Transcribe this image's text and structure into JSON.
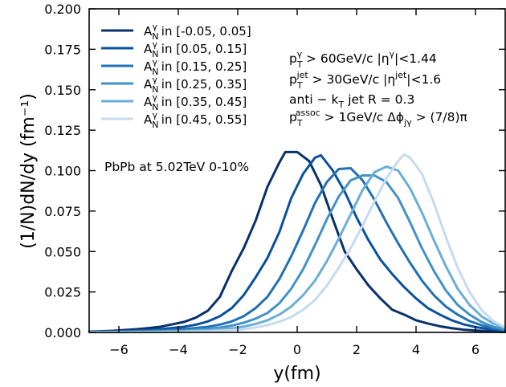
{
  "chart_data": {
    "type": "line",
    "xlabel": "y(fm)",
    "ylabel": "(1/N)dN/dy (fm⁻¹)",
    "xlim": [
      -7,
      7
    ],
    "ylim": [
      0,
      0.2
    ],
    "xticks": [
      -6,
      -4,
      -2,
      0,
      2,
      4,
      6
    ],
    "xtick_labels": [
      "−6",
      "−4",
      "−2",
      "0",
      "2",
      "4",
      "6"
    ],
    "yticks": [
      0,
      0.025,
      0.05,
      0.075,
      0.1,
      0.125,
      0.15,
      0.175,
      0.2
    ],
    "ytick_labels": [
      "0.000",
      "0.025",
      "0.050",
      "0.075",
      "0.100",
      "0.125",
      "0.150",
      "0.175",
      "0.200"
    ],
    "grid": false,
    "legend_position": "top-left",
    "legend_prefix": "A",
    "legend_sub": "N",
    "legend_sup": "γ",
    "series": [
      {
        "name": "[-0.05, 0.05]",
        "color": "#08306b",
        "x": [
          -7,
          -6.6,
          -6.2,
          -5.8,
          -5.4,
          -5,
          -4.6,
          -4.2,
          -3.8,
          -3.4,
          -3,
          -2.6,
          -2.2,
          -1.8,
          -1.4,
          -1,
          -0.6,
          -0.4,
          0,
          0.4,
          0.8,
          1.2,
          1.6,
          2,
          2.4,
          2.8,
          3.2,
          3.6,
          4,
          4.4,
          4.8,
          5.2,
          5.6,
          6,
          6.4,
          6.8,
          7
        ],
        "y": [
          0.0005,
          0.0007,
          0.001,
          0.0015,
          0.002,
          0.0027,
          0.0035,
          0.005,
          0.0065,
          0.0092,
          0.0135,
          0.022,
          0.038,
          0.052,
          0.069,
          0.09,
          0.105,
          0.1115,
          0.1115,
          0.106,
          0.091,
          0.07,
          0.05,
          0.039,
          0.029,
          0.021,
          0.014,
          0.011,
          0.0075,
          0.0055,
          0.0038,
          0.0026,
          0.0017,
          0.0012,
          0.0008,
          0.0005,
          0.0003
        ]
      },
      {
        "name": "[0.05, 0.15]",
        "color": "#08519c",
        "x": [
          -7,
          -6.2,
          -5.4,
          -4.6,
          -3.8,
          -3.4,
          -3,
          -2.6,
          -2.2,
          -1.8,
          -1.4,
          -1,
          -0.6,
          -0.2,
          0.2,
          0.6,
          0.8,
          1.2,
          1.6,
          2,
          2.4,
          2.8,
          3.2,
          3.6,
          4,
          4.4,
          4.8,
          5.2,
          5.6,
          6,
          6.4,
          6.8,
          7
        ],
        "y": [
          0.0003,
          0.0006,
          0.0011,
          0.002,
          0.0035,
          0.0048,
          0.0068,
          0.01,
          0.015,
          0.023,
          0.034,
          0.046,
          0.062,
          0.083,
          0.098,
          0.108,
          0.1095,
          0.1,
          0.087,
          0.071,
          0.057,
          0.045,
          0.036,
          0.028,
          0.021,
          0.015,
          0.011,
          0.0075,
          0.005,
          0.0033,
          0.0022,
          0.0014,
          0.0009
        ]
      },
      {
        "name": "[0.15, 0.25]",
        "color": "#2171b5",
        "x": [
          -7,
          -6.2,
          -5.4,
          -4.6,
          -3.8,
          -3,
          -2.6,
          -2.2,
          -1.8,
          -1.4,
          -1,
          -0.6,
          -0.2,
          0.2,
          0.6,
          1,
          1.4,
          1.8,
          2.2,
          2.6,
          3,
          3.4,
          3.8,
          4.2,
          4.6,
          5,
          5.4,
          5.8,
          6.2,
          6.6,
          7
        ],
        "y": [
          0.0002,
          0.0004,
          0.0007,
          0.0012,
          0.002,
          0.0035,
          0.0048,
          0.0068,
          0.01,
          0.015,
          0.022,
          0.033,
          0.047,
          0.063,
          0.08,
          0.093,
          0.101,
          0.1015,
          0.094,
          0.082,
          0.068,
          0.055,
          0.043,
          0.032,
          0.023,
          0.016,
          0.011,
          0.007,
          0.0045,
          0.0025,
          0.0012
        ]
      },
      {
        "name": "[0.25, 0.35]",
        "color": "#4292c6",
        "x": [
          -7,
          -6.2,
          -5.4,
          -4.6,
          -3.8,
          -3,
          -2.6,
          -2.2,
          -1.8,
          -1.4,
          -1,
          -0.6,
          -0.2,
          0.2,
          0.6,
          1,
          1.4,
          1.8,
          2.2,
          2.6,
          3,
          3.4,
          3.8,
          4.2,
          4.6,
          5,
          5.4,
          5.8,
          6.2,
          6.6,
          7
        ],
        "y": [
          0.0001,
          0.0002,
          0.0004,
          0.0007,
          0.0012,
          0.0022,
          0.003,
          0.0042,
          0.006,
          0.0085,
          0.012,
          0.018,
          0.027,
          0.039,
          0.054,
          0.07,
          0.084,
          0.094,
          0.097,
          0.097,
          0.093,
          0.083,
          0.068,
          0.052,
          0.038,
          0.026,
          0.017,
          0.011,
          0.0065,
          0.0035,
          0.0015
        ]
      },
      {
        "name": "[0.35, 0.45]",
        "color": "#6baed6",
        "x": [
          -7,
          -6.2,
          -5.4,
          -4.6,
          -3.8,
          -3,
          -2.2,
          -1.8,
          -1.4,
          -1,
          -0.6,
          -0.2,
          0.2,
          0.6,
          1,
          1.4,
          1.8,
          2.2,
          2.6,
          3,
          3.4,
          3.8,
          4.2,
          4.6,
          5,
          5.4,
          5.8,
          6.2,
          6.6,
          7
        ],
        "y": [
          0.0001,
          0.0001,
          0.0002,
          0.0004,
          0.0007,
          0.0013,
          0.0025,
          0.0036,
          0.0052,
          0.0075,
          0.011,
          0.016,
          0.023,
          0.032,
          0.044,
          0.058,
          0.073,
          0.088,
          0.099,
          0.1025,
          0.1,
          0.089,
          0.074,
          0.057,
          0.041,
          0.027,
          0.017,
          0.01,
          0.0055,
          0.0025
        ]
      },
      {
        "name": "[0.45, 0.55]",
        "color": "#c6dbef",
        "x": [
          -7,
          -6.2,
          -5.4,
          -4.6,
          -3.8,
          -3,
          -2.2,
          -1.8,
          -1.4,
          -1,
          -0.6,
          -0.2,
          0.2,
          0.6,
          1,
          1.4,
          1.8,
          2.2,
          2.6,
          3,
          3.4,
          3.6,
          3.8,
          4.2,
          4.6,
          5,
          5.4,
          5.8,
          6.2,
          6.6,
          7
        ],
        "y": [
          0,
          0.0001,
          0.0001,
          0.0002,
          0.0004,
          0.0007,
          0.0014,
          0.002,
          0.003,
          0.0045,
          0.0066,
          0.0095,
          0.014,
          0.02,
          0.029,
          0.04,
          0.052,
          0.066,
          0.081,
          0.095,
          0.106,
          0.11,
          0.108,
          0.098,
          0.08,
          0.059,
          0.04,
          0.025,
          0.014,
          0.007,
          0.003
        ]
      }
    ],
    "annotations": {
      "line1": {
        "p": "p",
        "sub": "T",
        "sup": "γ",
        "rest": " > 60GeV/c |η",
        "sup2": "γ",
        "rest2": "|<1.44"
      },
      "line2": {
        "p": "p",
        "sub": "T",
        "sup": "jet",
        "rest": " > 30GeV/c |η",
        "sup2": "jet",
        "rest2": "|<1.6"
      },
      "line3": {
        "a": "anti − k",
        "sub": "T",
        "rest": " jet R = 0.3"
      },
      "line4": {
        "p": "p",
        "sub": "T",
        "sup": "assoc",
        "rest": " > 1GeV/c Δϕ",
        "sub2": "jγ",
        "rest2": " > (7/8)π"
      },
      "system": "PbPb at 5.02TeV 0-10%"
    }
  }
}
